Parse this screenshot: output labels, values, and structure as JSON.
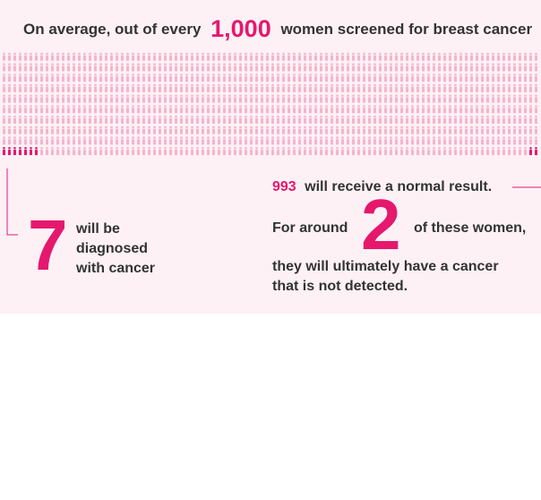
{
  "header": {
    "prefix": "On average, out of every",
    "number": "1,000",
    "suffix": "women screened for breast cancer"
  },
  "left": {
    "number": 7,
    "lines": [
      "will be",
      "diagnosed",
      "with cancer"
    ]
  },
  "right": {
    "normal_number": 993,
    "normal_text": "will receive a normal result.",
    "around_prefix": "For around",
    "count": 2,
    "around_suffix": "of these women,",
    "lines": [
      "they will ultimately have a cancer",
      "that is not detected."
    ]
  }
}
